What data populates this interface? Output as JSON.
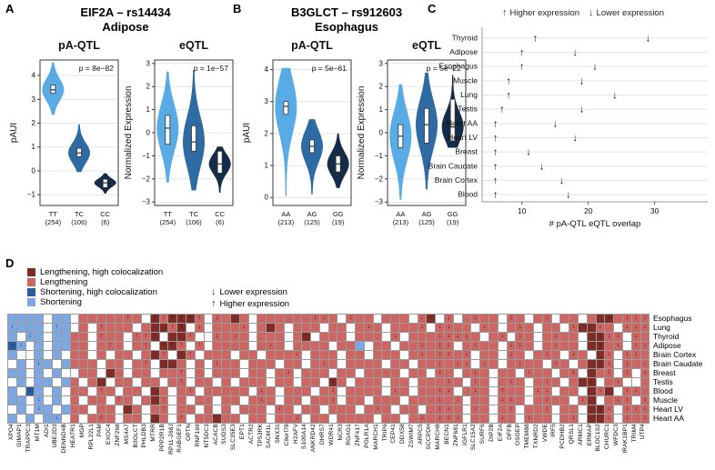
{
  "panel_a": {
    "label": "A",
    "title": "EIF2A – rs14434",
    "tissue": "Adipose"
  },
  "panel_b": {
    "label": "B",
    "title": "B3GLCT – rs912603",
    "tissue": "Esophagus"
  },
  "panel_c": {
    "label": "C",
    "legend_up": "↑",
    "legend_up_text": "Higher expression",
    "legend_down": "↓",
    "legend_down_text": "Lower expression"
  },
  "panel_d": {
    "label": "D",
    "legend": [
      {
        "label": "Lengthening, high colocalization",
        "color": "#7f2b26"
      },
      {
        "label": "Lengthening",
        "color": "#cd6562"
      },
      {
        "label": "Shortening, high colocalization",
        "color": "#2a5d9c"
      },
      {
        "label": "Shortening",
        "color": "#7da7e2"
      }
    ],
    "arrow_down": "↓",
    "arrow_down_text": "Lower expression",
    "arrow_up": "↑",
    "arrow_up_text": "Higher expression"
  },
  "colors": {
    "violin_light_blue": "#58abe5",
    "violin_medium_blue": "#2f6ba3",
    "violin_navy": "#142c47",
    "heat_red_light": "#cd6562",
    "heat_red_dark": "#7f2b26",
    "heat_blue_light": "#7da7e2",
    "heat_blue_dark": "#2a5d9c",
    "grid_line": "#9b9b9b"
  },
  "chart_data": [
    {
      "id": "a_paqtl",
      "type": "violin",
      "panel": "A",
      "subtitle": "pA-QTL",
      "pvalue": "p = 8e−82",
      "ylabel": "pAUI",
      "ylim": [
        -1.45,
        4.65
      ],
      "yticks": [
        -1,
        0,
        1,
        2,
        3,
        4
      ],
      "groups": [
        {
          "label": "TT",
          "count": "(254)",
          "fill": "#58abe5",
          "min": 2.35,
          "max": 4.55,
          "q1": 3.25,
          "q3": 3.6,
          "median": 3.4
        },
        {
          "label": "TC",
          "count": "(106)",
          "fill": "#2f6ba3",
          "min": -0.05,
          "max": 1.95,
          "q1": 0.6,
          "q3": 0.95,
          "median": 0.75
        },
        {
          "label": "CC",
          "count": "(6)",
          "fill": "#142c47",
          "min": -0.95,
          "max": -0.1,
          "q1": -0.7,
          "q3": -0.35,
          "median": -0.5
        }
      ]
    },
    {
      "id": "a_eqtl",
      "type": "violin",
      "panel": "A",
      "subtitle": "eQTL",
      "pvalue": "p = 1e−57",
      "ylabel": "Normalized Expression",
      "ylim": [
        -3.15,
        3.15
      ],
      "yticks": [
        -3,
        -2,
        -1,
        0,
        1,
        2,
        3
      ],
      "groups": [
        {
          "label": "TT",
          "count": "(254)",
          "fill": "#58abe5",
          "min": -2.15,
          "max": 2.65,
          "q1": -0.5,
          "q3": 0.75,
          "median": 0.2
        },
        {
          "label": "TC",
          "count": "(106)",
          "fill": "#2f6ba3",
          "min": -2.5,
          "max": 2.7,
          "q1": -0.8,
          "q3": 0.3,
          "median": -0.4
        },
        {
          "label": "CC",
          "count": "(6)",
          "fill": "#142c47",
          "min": -2.6,
          "max": -0.6,
          "q1": -1.75,
          "q3": -0.8,
          "median": -1.35
        }
      ]
    },
    {
      "id": "b_paqtl",
      "type": "violin",
      "panel": "B",
      "subtitle": "pA-QTL",
      "pvalue": "p = 5e−61",
      "ylabel": "pAUI",
      "ylim": [
        -0.25,
        4.3
      ],
      "yticks": [
        0,
        1,
        2,
        3,
        4
      ],
      "groups": [
        {
          "label": "AA",
          "count": "(213)",
          "fill": "#58abe5",
          "min": 0.05,
          "max": 4.05,
          "q1": 2.6,
          "q3": 3.0,
          "median": 2.85
        },
        {
          "label": "AG",
          "count": "(125)",
          "fill": "#2f6ba3",
          "min": 0.1,
          "max": 2.45,
          "q1": 1.4,
          "q3": 1.8,
          "median": 1.6
        },
        {
          "label": "GG",
          "count": "(19)",
          "fill": "#142c47",
          "min": 0.3,
          "max": 2.0,
          "q1": 0.8,
          "q3": 1.3,
          "median": 1.05
        }
      ]
    },
    {
      "id": "b_eqtl",
      "type": "violin",
      "panel": "B",
      "subtitle": "eQTL",
      "pvalue": "p = 5e−22",
      "ylabel": "Normalized Expression",
      "ylim": [
        -3.15,
        3.15
      ],
      "yticks": [
        -3,
        -2,
        -1,
        0,
        1,
        2,
        3
      ],
      "groups": [
        {
          "label": "AA",
          "count": "(213)",
          "fill": "#58abe5",
          "min": -2.9,
          "max": 2.1,
          "q1": -0.65,
          "q3": 0.35,
          "median": -0.15
        },
        {
          "label": "AG",
          "count": "(125)",
          "fill": "#2f6ba3",
          "min": -2.45,
          "max": 2.6,
          "q1": -0.45,
          "q3": 1.05,
          "median": 0.35
        },
        {
          "label": "GG",
          "count": "(19)",
          "fill": "#142c47",
          "min": -0.65,
          "max": 2.5,
          "q1": -0.35,
          "q3": 1.45,
          "median": 0.25
        }
      ]
    },
    {
      "id": "c_overlap",
      "type": "scatter",
      "panel": "C",
      "xlabel": "# pA-QTL eQTL overlap",
      "xticks": [
        10,
        20,
        30
      ],
      "xlim": [
        4,
        38
      ],
      "rows": [
        {
          "tissue": "Thyroid",
          "up": 12,
          "down": 29
        },
        {
          "tissue": "Adipose",
          "up": 10,
          "down": 18
        },
        {
          "tissue": "Esophagus",
          "up": 10,
          "down": 21
        },
        {
          "tissue": "Muscle",
          "up": 8,
          "down": 19
        },
        {
          "tissue": "Lung",
          "up": 8,
          "down": 24
        },
        {
          "tissue": "Testis",
          "up": 7,
          "down": 19
        },
        {
          "tissue": "Heart AA",
          "up": 6,
          "down": 15
        },
        {
          "tissue": "Heart LV",
          "up": 6,
          "down": 18
        },
        {
          "tissue": "Breast",
          "up": 6,
          "down": 11
        },
        {
          "tissue": "Brain Caudate",
          "up": 6,
          "down": 13
        },
        {
          "tissue": "Brain Cortex",
          "up": 6,
          "down": 16
        },
        {
          "tissue": "Blood",
          "up": 6,
          "down": 17
        }
      ]
    },
    {
      "id": "d_heatmap",
      "type": "heatmap",
      "panel": "D",
      "rows": [
        "Esophagus",
        "Lung",
        "Thyroid",
        "Adipose",
        "Brain Cortex",
        "Brain Caudate",
        "Breast",
        "Testis",
        "Blood",
        "Muscle",
        "Heart LV",
        "Heart AA"
      ],
      "genes": [
        "XPO4",
        "GIMAP1",
        "TRAPPC3",
        "MT1M",
        "ADI1",
        "UBE2D3",
        "DENND4B",
        "HEATR1",
        "MGP",
        "RPL22L1",
        "PAM",
        "EXOC4",
        "ZNF268",
        "MS4A7",
        "B3GLCT",
        "PHLDB3",
        "MTRR",
        "PPP2R1B",
        "RP11-268J",
        "RABGEF1",
        "OPTN",
        "RNF169",
        "NT5DC3",
        "ACACB",
        "SUDS3",
        "SLC35E3",
        "EPT1",
        "ACTR2",
        "TP53RK",
        "SACM1L",
        "SNX31",
        "C9orf78",
        "H2AFV",
        "S100A14",
        "ANKRD42",
        "DHRS7",
        "WDR41",
        "NCR3",
        "RGAG1",
        "ZNF417",
        "POLR1A",
        "MARCH1",
        "TRIP6",
        "CEP41",
        "DDX58",
        "ZSWIM7",
        "ARPC5",
        "SCCPDH",
        "MARCH8",
        "BECN1",
        "ZNF681",
        "IGFLR1",
        "SLC15A2",
        "SURF6",
        "DIP2B",
        "EIF2A",
        "DFFB",
        "OSGEP",
        "TMEM88",
        "TXNRD2",
        "VWDE",
        "IRF5",
        "PCDHB2",
        "QRSL1",
        "ARMC1",
        "ERMAP",
        "BLOC1S2",
        "CHURC1",
        "WFDC3",
        "IRAK1BP1",
        "TRIM4",
        "UTP4"
      ],
      "cell_codes": {
        ".": {
          "color": "#ffffff",
          "arrow": "",
          "arrow_color": ""
        },
        "r": {
          "color": "#cd6562",
          "arrow": "",
          "arrow_color": ""
        },
        "u": {
          "color": "#cd6562",
          "arrow": "↑",
          "arrow_color": "#3c0d0b"
        },
        "d": {
          "color": "#cd6562",
          "arrow": "↓",
          "arrow_color": "#3c0d0b"
        },
        "R": {
          "color": "#7f2b26",
          "arrow": "",
          "arrow_color": ""
        },
        "U": {
          "color": "#7f2b26",
          "arrow": "↑",
          "arrow_color": "#1e0503"
        },
        "D": {
          "color": "#7f2b26",
          "arrow": "↓",
          "arrow_color": "#1e0503"
        },
        "b": {
          "color": "#7da7e2",
          "arrow": "",
          "arrow_color": ""
        },
        "v": {
          "color": "#7da7e2",
          "arrow": "↓",
          "arrow_color": "#0e2c52"
        },
        "w": {
          "color": "#7da7e2",
          "arrow": "↑",
          "arrow_color": "#0e2c52"
        },
        "B": {
          "color": "#2a5d9c",
          "arrow": "",
          "arrow_color": ""
        },
        "V": {
          "color": "#2a5d9c",
          "arrow": "↓",
          "arrow_color": "#07182e"
        }
      },
      "cells": [
        "bbbb.bb.rrrrrur.UuUUUu.drRr.rrrrrrddr.drr.rrr.dR.d.rdrr.dr.rd.rr.rRDrddd",
        "vbbb.wb.r.urrr.rRRuU.d.rrrd.rRr.rrr.rr.rdr.rrrd.ddrr.dr.rdr.rr.dRRdr.ddd",
        "b.vb.bbrr.urr.uuU.RRu..drdr.rrr.rU.rrr.rrr.d.rrrddddr.rd.dr.rdrr.RDdd.dr",
        "Vv.b.bbrr.rur.ru.UUu.u.rrrr.rdr.rrrr.rrb.rr.rrdrdd.rdrr.ddr.rdrr.RDrd.dd",
        "b..b.b.rr.r.rr.rRu.Ru.rrr.rr.rrrd.rrr.rr.rrr.rdrddrd.rr.dr.rdr.dr.Rd.ddr",
        ".b.vb.brrr.rr.ru.RRr.r.drr.rrr.rr.rdr.rrrr.rr.rrdrdd.dr.rdrr.dr.rRDd.drd",
        "bb.b.b..rr.Rr.rr.rru.r.rrr.rr.rd.rrr.rr.rrrr.rr.dr.rdr.rr.drr.rd.Rrd.d.d",
        ".b.bb.br.rR.rr.rr.ru.rr.r.rrr.rr.rr.Dr.rrr.rr.rrrdr.dr.rdr.rdr.rRD.rd..r",
        "b.Vb.b.rr.ur.rr.Rr.ru.rrrrr.dr.rrr.rd.rrrr.dr.rrdd.rdr.urr.dd.rr.RdR.ddr",
        "bb.v.b.r.rr.ur.rRu.r.rr.rr.rdr.rr.rrd.rr.rrr.rrrdrd.rr.ddr.rdrr.dR.rdd.d",
        ".b.vb.brr.rr.Rr.ru.rr.r.r.rrr.dr.rr.rrr.rdr.rr.rddr.dr.rd.rrd.rr.RDd.ddd",
        "b.b.bv.r.rur.rr.Rr.u.rrRrr.rr.rrd.rr.rrrr.rr.rdrddd.rr.dr.drr.rd.RRd.drd"
      ]
    }
  ]
}
